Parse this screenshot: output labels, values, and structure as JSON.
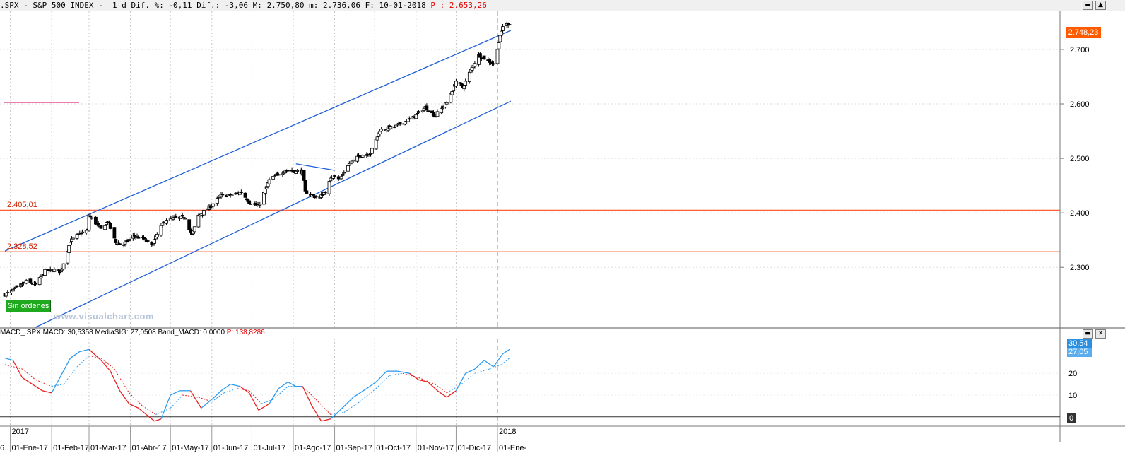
{
  "header": {
    "symbol": ".SPX - S&P 500 INDEX -",
    "period": "1 d",
    "change_pct_label": "Dif. %:",
    "change_pct": "-0,11",
    "change_label": "Dif.:",
    "change": "-3,06",
    "max_label": "M:",
    "max": "2.750,80",
    "min_label": "m:",
    "min": "2.736,06",
    "date_label": "F:",
    "date": "10-01-2018",
    "cursor_label": "P :",
    "cursor_value": "2.653,26"
  },
  "macd_header": {
    "name": "MACD_.SPX",
    "macd_label": "MACD:",
    "macd": "30,5358",
    "signal_label": "MediaSIG:",
    "signal": "27,0508",
    "band_label": "Band_MACD:",
    "band": "0,0000",
    "cursor_label": "P:",
    "cursor": "138,8286"
  },
  "badge_text": "Sin órdenes",
  "watermark": "www.visualchart.com",
  "price_labels": {
    "upper_level": "2.405,01",
    "lower_level": "2.328,52"
  },
  "last_price_box": "2.748,23",
  "macd_value_box": "30,54",
  "signal_value_box": "27,05",
  "macd_zero_box": "0",
  "colors": {
    "up": "#ffffff",
    "down": "#000000",
    "trend": "#1f5fd6",
    "level": "#ff4a1a",
    "macd": "#2a9af0",
    "signal_up": "#2a9af0",
    "signal_down": "#e82020",
    "marker": "#e0307a"
  },
  "chart_data": [
    {
      "type": "candlestick",
      "title": "S&P 500 INDEX",
      "x_dates": [
        "2016-12-28",
        "2017-01-24"
      ],
      "x_tick_labels": [
        "01-Ene-17",
        "01-Feb-17",
        "01-Mar-17",
        "01-Abr-17",
        "01-May-17",
        "01-Jun-17",
        "01-Jul-17",
        "01-Ago-17",
        "01-Sep-17",
        "01-Oct-17",
        "01-Nov-17",
        "01-Dic-17",
        "01-Ene-"
      ],
      "year_labels": [
        "2017",
        "2018"
      ],
      "y_tick_labels": [
        "2.300",
        "2.400",
        "2.500",
        "2.600",
        "2.700"
      ],
      "ylim": [
        2190,
        2770
      ],
      "close_path": [
        [
          "2016-12-28",
          2250
        ],
        [
          "2017-01-03",
          2258
        ],
        [
          "2017-01-13",
          2274
        ],
        [
          "2017-01-20",
          2268
        ],
        [
          "2017-01-27",
          2293
        ],
        [
          "2017-02-03",
          2295
        ],
        [
          "2017-02-08",
          2292
        ],
        [
          "2017-02-15",
          2348
        ],
        [
          "2017-02-22",
          2362
        ],
        [
          "2017-02-28",
          2368
        ],
        [
          "2017-03-01",
          2395
        ],
        [
          "2017-03-10",
          2370
        ],
        [
          "2017-03-15",
          2385
        ],
        [
          "2017-03-21",
          2345
        ],
        [
          "2017-03-27",
          2342
        ],
        [
          "2017-04-03",
          2358
        ],
        [
          "2017-04-11",
          2352
        ],
        [
          "2017-04-17",
          2340
        ],
        [
          "2017-04-24",
          2375
        ],
        [
          "2017-04-28",
          2388
        ],
        [
          "2017-05-05",
          2390
        ],
        [
          "2017-05-12",
          2392
        ],
        [
          "2017-05-17",
          2358
        ],
        [
          "2017-05-22",
          2395
        ],
        [
          "2017-05-31",
          2412
        ],
        [
          "2017-06-08",
          2432
        ],
        [
          "2017-06-15",
          2432
        ],
        [
          "2017-06-23",
          2438
        ],
        [
          "2017-06-29",
          2420
        ],
        [
          "2017-07-06",
          2412
        ],
        [
          "2017-07-14",
          2460
        ],
        [
          "2017-07-21",
          2472
        ],
        [
          "2017-07-26",
          2478
        ],
        [
          "2017-08-08",
          2475
        ],
        [
          "2017-08-10",
          2438
        ],
        [
          "2017-08-17",
          2430
        ],
        [
          "2017-08-21",
          2428
        ],
        [
          "2017-08-25",
          2440
        ],
        [
          "2017-08-31",
          2472
        ],
        [
          "2017-09-05",
          2462
        ],
        [
          "2017-09-11",
          2488
        ],
        [
          "2017-09-20",
          2505
        ],
        [
          "2017-09-28",
          2510
        ],
        [
          "2017-10-05",
          2552
        ],
        [
          "2017-10-16",
          2558
        ],
        [
          "2017-10-24",
          2568
        ],
        [
          "2017-10-30",
          2575
        ],
        [
          "2017-11-08",
          2594
        ],
        [
          "2017-11-15",
          2578
        ],
        [
          "2017-11-24",
          2602
        ],
        [
          "2017-12-01",
          2642
        ],
        [
          "2017-12-06",
          2630
        ],
        [
          "2017-12-12",
          2662
        ],
        [
          "2017-12-18",
          2690
        ],
        [
          "2017-12-29",
          2673
        ],
        [
          "2018-01-05",
          2743
        ],
        [
          "2018-01-10",
          2748
        ]
      ],
      "last": 2748.23,
      "horizontal_levels": [
        2405.01,
        2328.52
      ],
      "channel_upper": [
        [
          "2016-12-28",
          2330
        ],
        [
          "2018-01-11",
          2735
        ]
      ],
      "channel_lower": [
        [
          "2017-01-20",
          2190
        ],
        [
          "2018-01-11",
          2605
        ]
      ],
      "trendline_short": [
        [
          "2017-08-03",
          2490
        ],
        [
          "2017-09-01",
          2478
        ]
      ],
      "grid": true
    },
    {
      "type": "line",
      "title": "MACD_.SPX",
      "ylim": [
        -4,
        36
      ],
      "y_tick_labels": [
        "10",
        "20"
      ],
      "series": [
        {
          "name": "MACD",
          "values": [
            [
              "2016-12-28",
              27
            ],
            [
              "2017-01-03",
              26
            ],
            [
              "2017-01-10",
              18
            ],
            [
              "2017-01-20",
              14
            ],
            [
              "2017-01-25",
              12
            ],
            [
              "2017-02-01",
              11
            ],
            [
              "2017-02-08",
              19
            ],
            [
              "2017-02-15",
              27
            ],
            [
              "2017-02-22",
              30
            ],
            [
              "2017-03-01",
              31
            ],
            [
              "2017-03-10",
              26
            ],
            [
              "2017-03-17",
              21
            ],
            [
              "2017-03-24",
              12
            ],
            [
              "2017-03-31",
              6
            ],
            [
              "2017-04-07",
              4
            ],
            [
              "2017-04-13",
              1
            ],
            [
              "2017-04-19",
              -2
            ],
            [
              "2017-04-24",
              -1
            ],
            [
              "2017-05-01",
              10
            ],
            [
              "2017-05-08",
              12
            ],
            [
              "2017-05-16",
              12
            ],
            [
              "2017-05-24",
              4
            ],
            [
              "2017-06-01",
              8
            ],
            [
              "2017-06-08",
              12
            ],
            [
              "2017-06-15",
              15
            ],
            [
              "2017-06-22",
              14
            ],
            [
              "2017-06-29",
              11
            ],
            [
              "2017-07-06",
              3
            ],
            [
              "2017-07-14",
              6
            ],
            [
              "2017-07-21",
              13
            ],
            [
              "2017-07-28",
              16
            ],
            [
              "2017-08-03",
              14
            ],
            [
              "2017-08-08",
              14
            ],
            [
              "2017-08-15",
              5
            ],
            [
              "2017-08-22",
              -2
            ],
            [
              "2017-08-29",
              -1
            ],
            [
              "2017-09-05",
              3
            ],
            [
              "2017-09-15",
              9
            ],
            [
              "2017-09-25",
              13
            ],
            [
              "2017-10-02",
              16
            ],
            [
              "2017-10-10",
              21
            ],
            [
              "2017-10-18",
              21
            ],
            [
              "2017-10-27",
              20
            ],
            [
              "2017-11-03",
              17
            ],
            [
              "2017-11-10",
              16
            ],
            [
              "2017-11-17",
              12
            ],
            [
              "2017-11-24",
              9
            ],
            [
              "2017-12-01",
              12
            ],
            [
              "2017-12-08",
              20
            ],
            [
              "2017-12-15",
              22
            ],
            [
              "2017-12-22",
              26
            ],
            [
              "2017-12-29",
              23
            ],
            [
              "2018-01-05",
              29
            ],
            [
              "2018-01-10",
              31
            ]
          ]
        },
        {
          "name": "MediaSIG",
          "values": [
            [
              "2016-12-28",
              24
            ],
            [
              "2017-01-10",
              22
            ],
            [
              "2017-01-20",
              17
            ],
            [
              "2017-02-01",
              14
            ],
            [
              "2017-02-10",
              15
            ],
            [
              "2017-02-20",
              23
            ],
            [
              "2017-03-01",
              28
            ],
            [
              "2017-03-10",
              27
            ],
            [
              "2017-03-20",
              22
            ],
            [
              "2017-03-31",
              11
            ],
            [
              "2017-04-10",
              5
            ],
            [
              "2017-04-20",
              1
            ],
            [
              "2017-05-01",
              4
            ],
            [
              "2017-05-10",
              10
            ],
            [
              "2017-05-22",
              9
            ],
            [
              "2017-06-01",
              7
            ],
            [
              "2017-06-10",
              11
            ],
            [
              "2017-06-20",
              13
            ],
            [
              "2017-06-29",
              12
            ],
            [
              "2017-07-08",
              6
            ],
            [
              "2017-07-17",
              8
            ],
            [
              "2017-07-28",
              14
            ],
            [
              "2017-08-08",
              14
            ],
            [
              "2017-08-18",
              8
            ],
            [
              "2017-08-29",
              1
            ],
            [
              "2017-09-08",
              2
            ],
            [
              "2017-09-20",
              7
            ],
            [
              "2017-10-02",
              13
            ],
            [
              "2017-10-12",
              19
            ],
            [
              "2017-10-22",
              20
            ],
            [
              "2017-11-03",
              18
            ],
            [
              "2017-11-15",
              15
            ],
            [
              "2017-11-24",
              11
            ],
            [
              "2017-12-05",
              15
            ],
            [
              "2017-12-15",
              20
            ],
            [
              "2017-12-26",
              22
            ],
            [
              "2018-01-04",
              24
            ],
            [
              "2018-01-10",
              27
            ]
          ]
        }
      ]
    }
  ]
}
